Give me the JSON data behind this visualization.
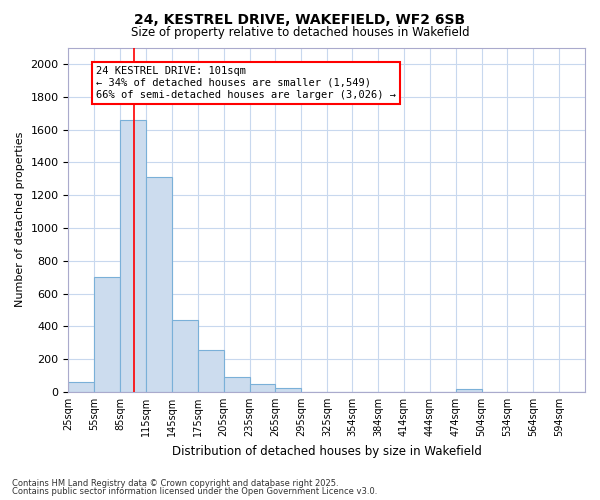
{
  "title_line1": "24, KESTREL DRIVE, WAKEFIELD, WF2 6SB",
  "title_line2": "Size of property relative to detached houses in Wakefield",
  "xlabel": "Distribution of detached houses by size in Wakefield",
  "ylabel": "Number of detached properties",
  "footnote1": "Contains HM Land Registry data © Crown copyright and database right 2025.",
  "footnote2": "Contains public sector information licensed under the Open Government Licence v3.0.",
  "annotation_line1": "24 KESTREL DRIVE: 101sqm",
  "annotation_line2": "← 34% of detached houses are smaller (1,549)",
  "annotation_line3": "66% of semi-detached houses are larger (3,026) →",
  "bar_color": "#ccdcee",
  "bar_edgecolor": "#7ab0d8",
  "redline_x": 101,
  "bins": [
    25,
    55,
    85,
    115,
    145,
    175,
    205,
    235,
    265,
    295,
    325,
    354,
    384,
    414,
    444,
    474,
    504,
    534,
    564,
    594,
    624
  ],
  "values": [
    60,
    700,
    1660,
    1310,
    440,
    255,
    90,
    50,
    25,
    0,
    0,
    0,
    0,
    0,
    0,
    15,
    0,
    0,
    0,
    0
  ],
  "ylim": [
    0,
    2100
  ],
  "yticks": [
    0,
    200,
    400,
    600,
    800,
    1000,
    1200,
    1400,
    1600,
    1800,
    2000
  ],
  "grid_color": "#c8d8ee",
  "background_color": "#ffffff"
}
